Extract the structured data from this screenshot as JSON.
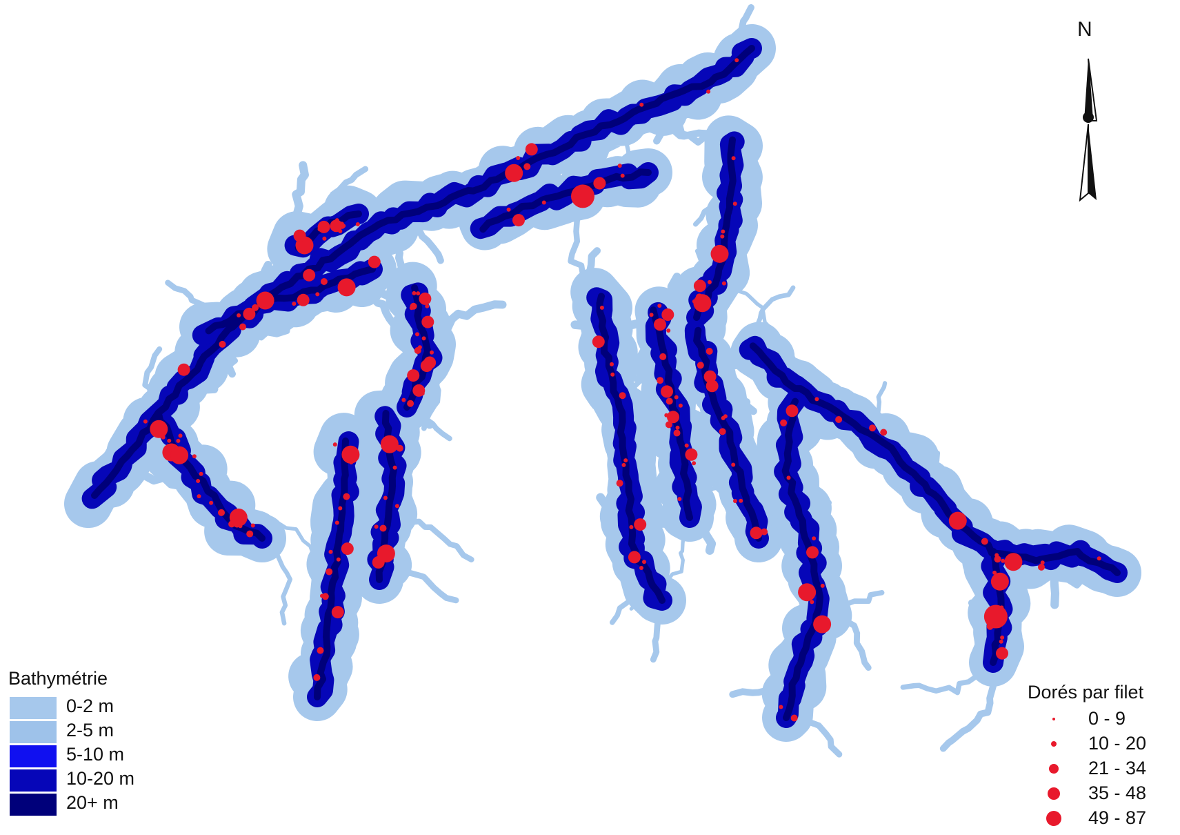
{
  "map": {
    "north_label": "N",
    "colors": {
      "depth_0_2": "#a6c8ec",
      "depth_2_5": "#9ec2ea",
      "depth_5_10": "#1010f0",
      "depth_10_20": "#0606b8",
      "depth_20_plus": "#00007a",
      "fish_marker": "#e8192c"
    }
  },
  "legend_bathymetry": {
    "title": "Bathymétrie",
    "classes": [
      {
        "label": "0-2 m",
        "color": "#a6c8ec"
      },
      {
        "label": "2-5 m",
        "color": "#9ec2ea"
      },
      {
        "label": "5-10 m",
        "color": "#1010f0"
      },
      {
        "label": "10-20 m",
        "color": "#0606b8"
      },
      {
        "label": "20+ m",
        "color": "#00007a"
      }
    ]
  },
  "legend_fish": {
    "title": "Dorés par filet",
    "classes": [
      {
        "label": "0 - 9"
      },
      {
        "label": "10 - 20"
      },
      {
        "label": "21 - 34"
      },
      {
        "label": "35 - 48"
      },
      {
        "label": "49 - 87"
      }
    ]
  }
}
